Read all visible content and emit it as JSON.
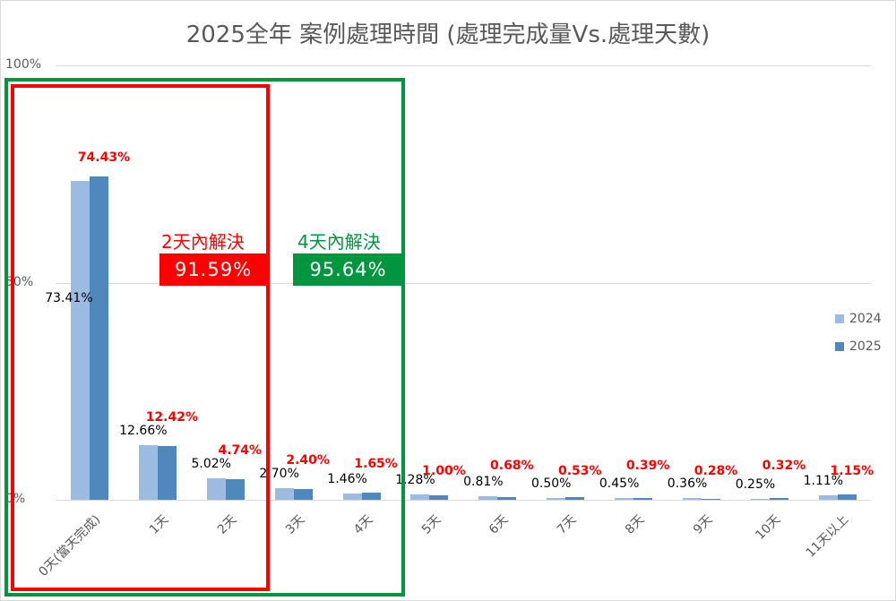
{
  "chart_data": {
    "type": "bar",
    "title": "2025全年 案例處理時間 (處理完成量Vs.處理天數)",
    "xlabel": "",
    "ylabel": "",
    "ylim": [
      0,
      1
    ],
    "yticks": [
      "0%",
      "50%",
      "100%"
    ],
    "grid": true,
    "legend_position": "right",
    "categories": [
      "0天(當天完成)",
      "1天",
      "2天",
      "3天",
      "4天",
      "5天",
      "6天",
      "7天",
      "8天",
      "9天",
      "10天",
      "11天以上"
    ],
    "series": [
      {
        "name": "2024",
        "color": "#9bbbe0",
        "values": [
          73.41,
          12.66,
          5.02,
          2.7,
          1.46,
          1.28,
          0.81,
          0.5,
          0.45,
          0.36,
          0.25,
          1.11
        ],
        "labels": [
          "73.41%",
          "12.66%",
          "5.02%",
          "2.70%",
          "1.46%",
          "1.28%",
          "0.81%",
          "0.50%",
          "0.45%",
          "0.36%",
          "0.25%",
          "1.11%"
        ]
      },
      {
        "name": "2025",
        "color": "#4f88bd",
        "values": [
          74.43,
          12.42,
          4.74,
          2.4,
          1.65,
          1.0,
          0.68,
          0.53,
          0.39,
          0.28,
          0.32,
          1.15
        ],
        "labels": [
          "74.43%",
          "12.42%",
          "4.74%",
          "2.40%",
          "1.65%",
          "1.00%",
          "0.68%",
          "0.53%",
          "0.39%",
          "0.28%",
          "0.32%",
          "1.15%"
        ]
      }
    ],
    "annotations": [
      {
        "label": "2天內解決",
        "value": "91.59%",
        "color": "#ff0000"
      },
      {
        "label": "4天內解決",
        "value": "95.64%",
        "color": "#00963f"
      }
    ]
  },
  "colors": {
    "red_box": "#ff0000",
    "green_box": "#00963f",
    "gridline": "#d9d9d9",
    "axis_text": "#595959"
  }
}
